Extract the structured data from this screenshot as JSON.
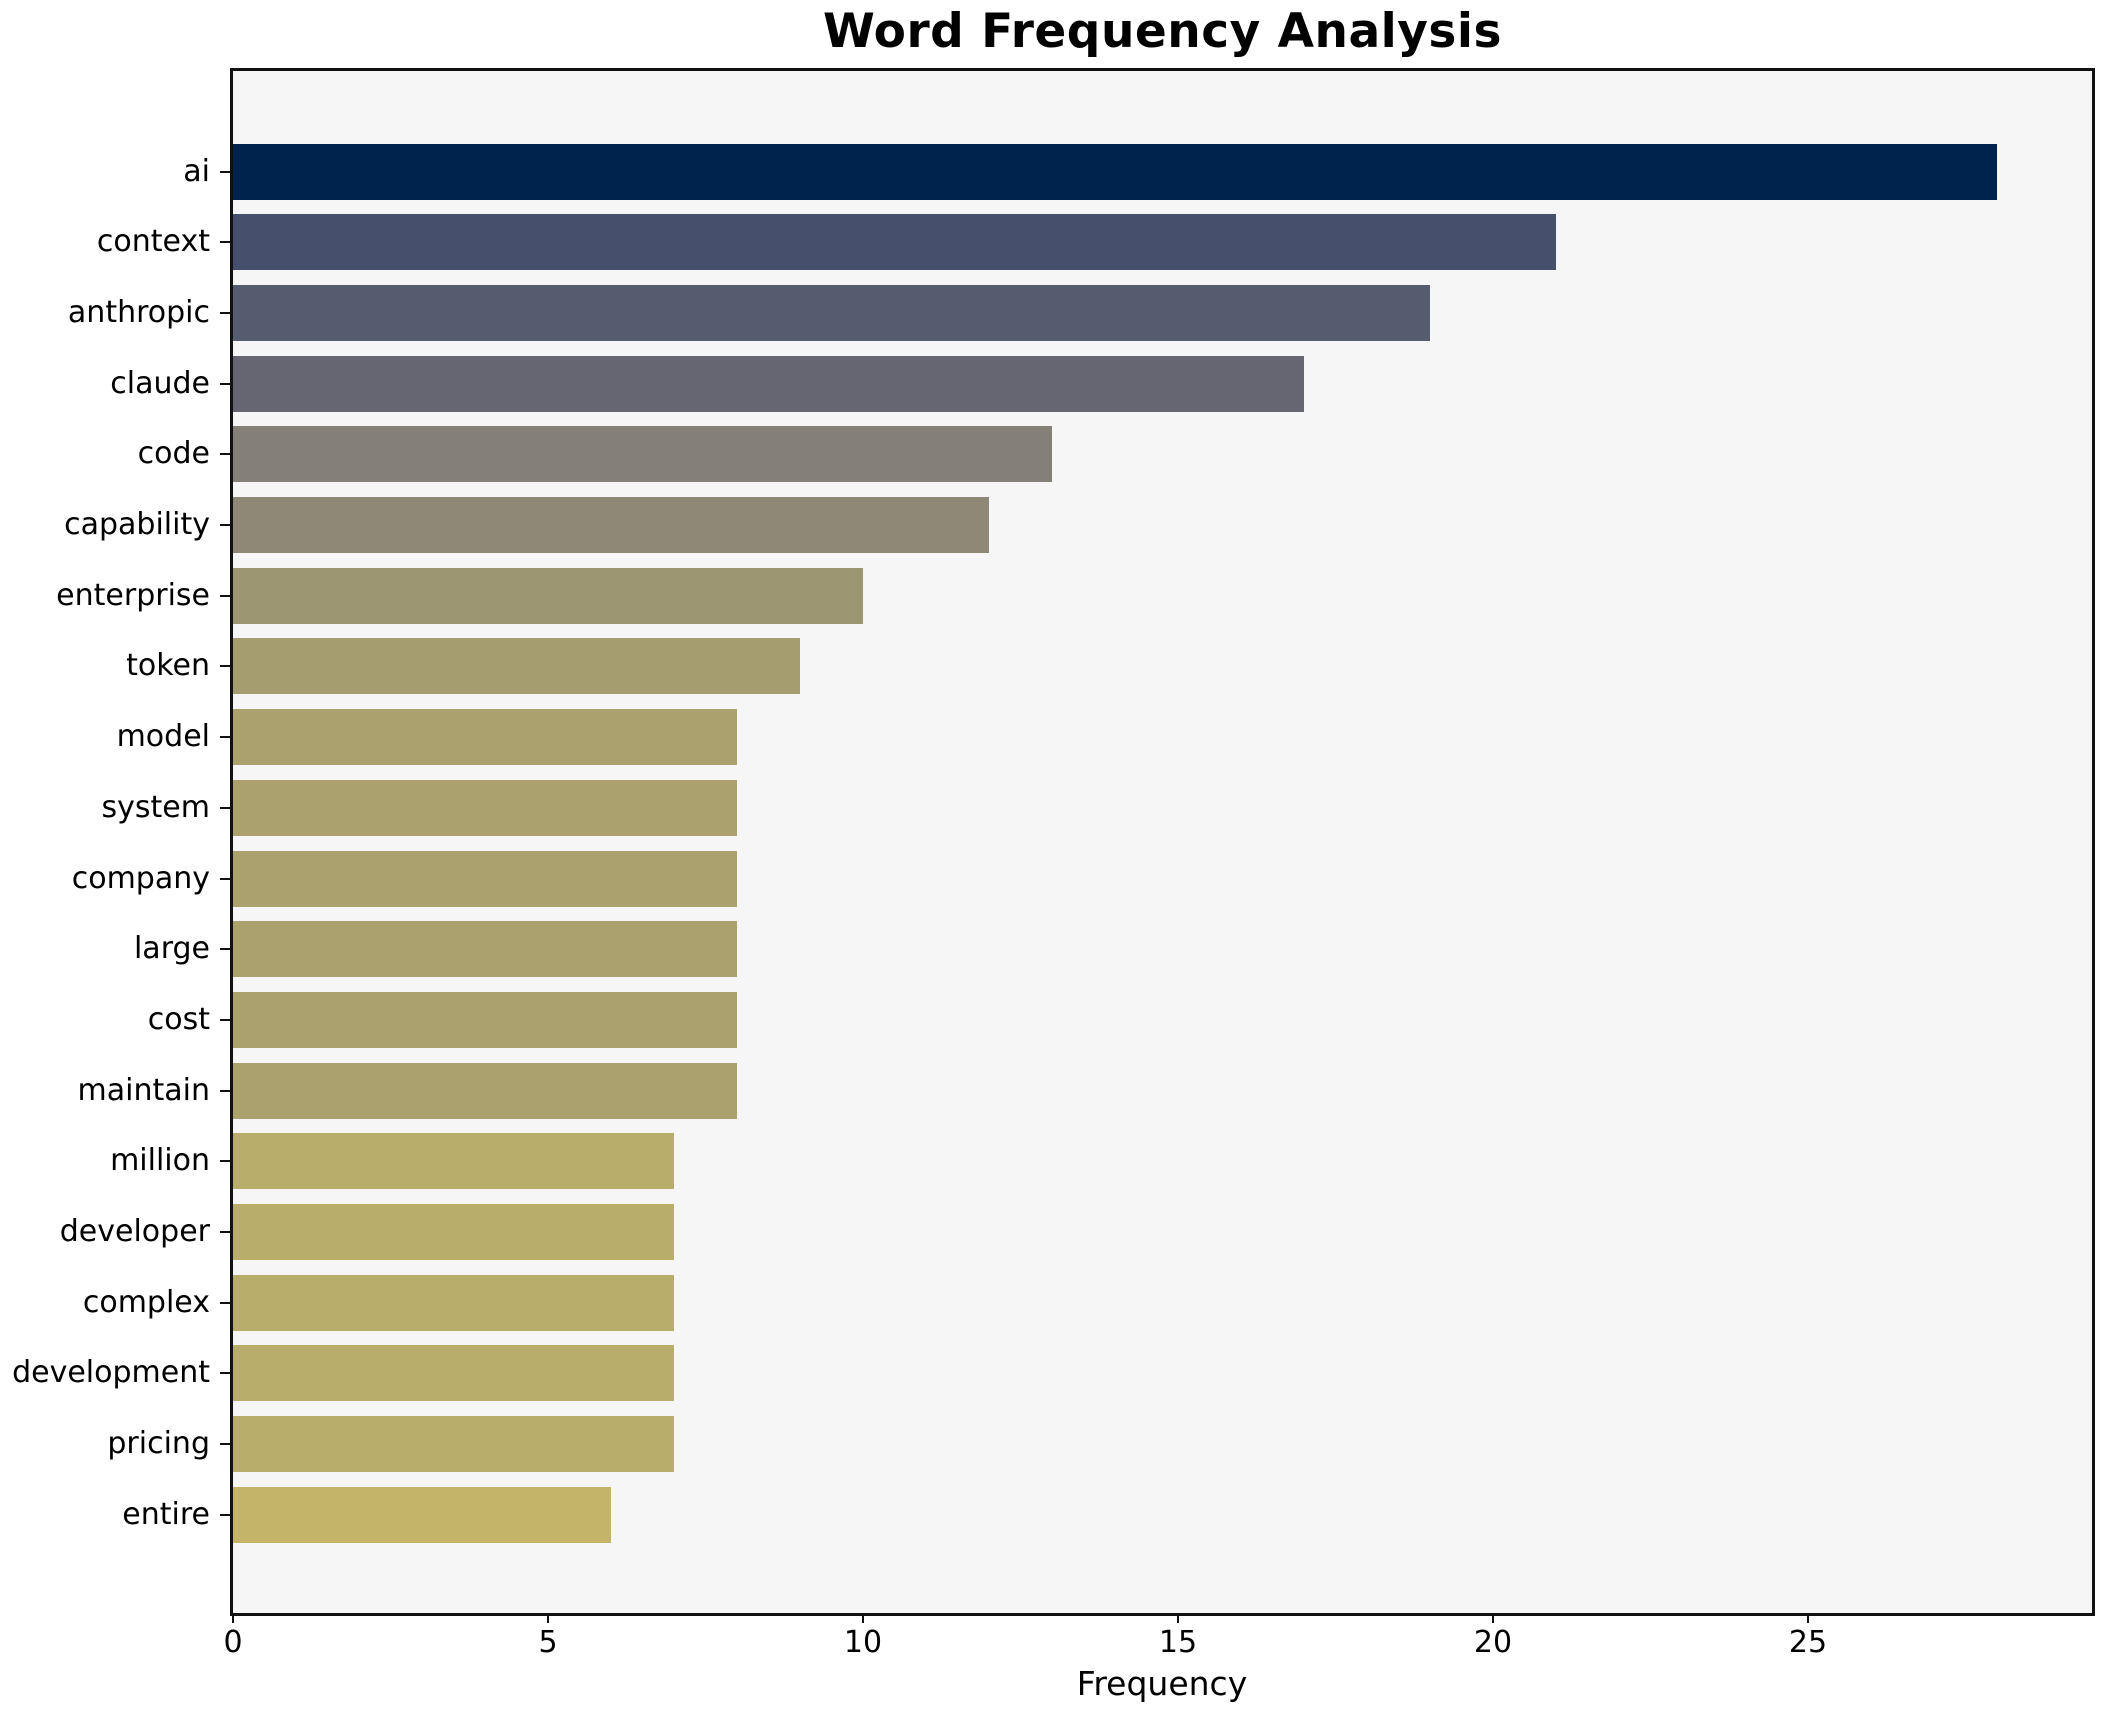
{
  "title": "Word Frequency Analysis",
  "x_axis": {
    "label": "Frequency",
    "ticks": [
      0,
      5,
      10,
      15,
      20,
      25
    ]
  },
  "chart_data": {
    "type": "bar",
    "orientation": "horizontal",
    "title": "Word Frequency Analysis",
    "xlabel": "Frequency",
    "ylabel": "",
    "xlim": [
      0,
      29.5
    ],
    "grid": false,
    "legend": false,
    "categories": [
      "ai",
      "context",
      "anthropic",
      "claude",
      "code",
      "capability",
      "enterprise",
      "token",
      "model",
      "system",
      "company",
      "large",
      "cost",
      "maintain",
      "million",
      "developer",
      "complex",
      "development",
      "pricing",
      "entire"
    ],
    "values": [
      28,
      21,
      19,
      17,
      13,
      12,
      10,
      9,
      8,
      8,
      8,
      8,
      8,
      8,
      7,
      7,
      7,
      7,
      7,
      6
    ],
    "bar_colors": [
      "#00234e",
      "#46506d",
      "#565c70",
      "#656672",
      "#848078",
      "#8e8876",
      "#9d9672",
      "#a59d70",
      "#aba16e",
      "#aba16e",
      "#aba16e",
      "#aba16e",
      "#aba16e",
      "#aba16e",
      "#b9ad6c",
      "#b9ad6c",
      "#b9ad6c",
      "#b9ad6c",
      "#b9ad6c",
      "#c3b467"
    ]
  },
  "style": {
    "figure_bg": "#ffffff",
    "plot_bg": "#f6f6f6",
    "spine_color": "#111111",
    "text_color": "#000000"
  }
}
